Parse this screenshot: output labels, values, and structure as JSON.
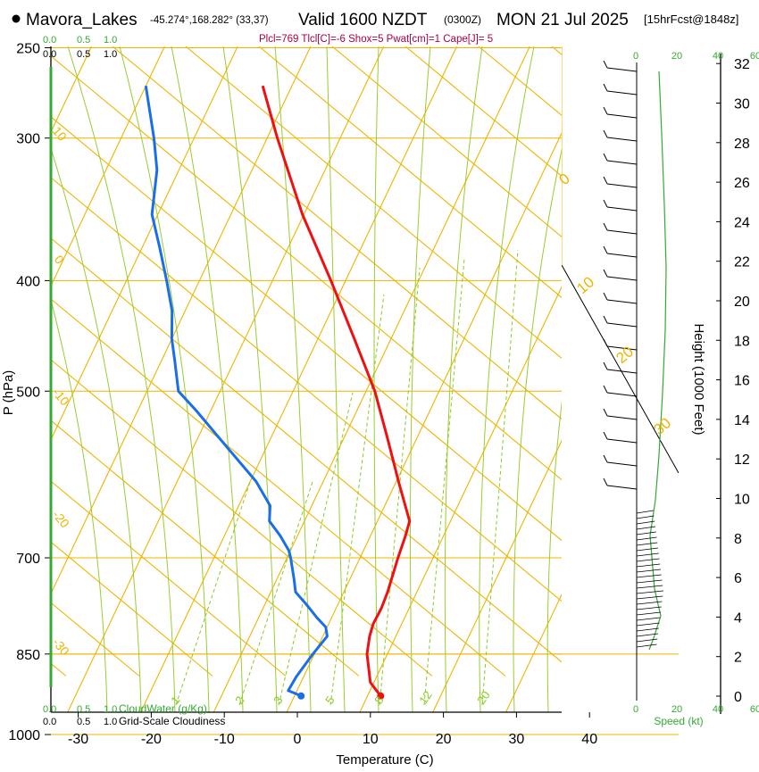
{
  "header": {
    "station": "Mavora_Lakes",
    "coords": "-45.274°,168.282° (33,37)",
    "valid": "Valid 1600 NZDT",
    "utc": "(0300Z)",
    "date": "MON 21 Jul 2025",
    "forecast": "[15hrFcst@1848z]",
    "indices": "Plcl=769 Tlcl[C]=-6 Shox=5 Pwat[cm]=1 Cape[J]= 5"
  },
  "colors": {
    "temperature": "#ee1111",
    "dewpoint": "#1a6fe8",
    "isotherm": "#f0b400",
    "dry_adiabat": "#99cc33",
    "mixing_ratio": "#88cc22",
    "cloud": "#33aa33",
    "speed": "#33aa33",
    "indices": "#aa0044"
  },
  "chart_data": {
    "type": "line",
    "title": "Mavora_Lakes Valid 1600 NZDT (0300Z) MON 21 Jul 2025",
    "xlabel": "Temperature (C)",
    "ylabel": "P (hPa)",
    "right_label": "Height (1000 Feet)",
    "pressure_ticks": [
      "250",
      "300",
      "400",
      "500",
      "700",
      "850",
      "1000"
    ],
    "pressure_values": [
      250,
      300,
      400,
      500,
      700,
      850,
      1000
    ],
    "temperature_ticks": [
      "-30",
      "-20",
      "-10",
      "0",
      "10",
      "20",
      "30",
      "40"
    ],
    "temperature_values": [
      -30,
      -20,
      -10,
      0,
      10,
      20,
      30,
      40
    ],
    "height_ticks": [
      "0",
      "2",
      "4",
      "6",
      "8",
      "10",
      "12",
      "14",
      "16",
      "18",
      "20",
      "22",
      "24",
      "26",
      "28",
      "30",
      "32"
    ],
    "height_values": [
      0,
      2,
      4,
      6,
      8,
      10,
      12,
      14,
      16,
      18,
      20,
      22,
      24,
      26,
      28,
      30,
      32
    ],
    "isotherm_labels": [
      "10",
      "0",
      "-10",
      "-20",
      "-30"
    ],
    "adiabat_labels": [
      "0",
      "10",
      "20",
      "30"
    ],
    "mixing_ratio_labels": [
      "1",
      "2",
      "3",
      "5",
      "8",
      "12",
      "20"
    ],
    "cloudwater_top_ticks": [
      "0.0",
      "0.5",
      "1.0"
    ],
    "cloudwater_bottom_ticks": [
      "0.0",
      "0.5",
      "1.0"
    ],
    "cloudwater_label": "CloudWater (g/Kg)",
    "cloudiness_label": "Grid-Scale Cloudiness",
    "speed_ticks_top": [
      "0",
      "20",
      "40",
      "60"
    ],
    "speed_ticks_bottom": [
      "0",
      "20",
      "40",
      "60"
    ],
    "speed_label": "Speed (kt)",
    "series": [
      {
        "name": "Temperature",
        "values": [
          [
            925,
            11.8
          ],
          [
            900,
            9.5
          ],
          [
            880,
            8.6
          ],
          [
            850,
            7.2
          ],
          [
            820,
            6.4
          ],
          [
            800,
            6.1
          ],
          [
            775,
            6.2
          ],
          [
            750,
            6.0
          ],
          [
            700,
            5.2
          ],
          [
            670,
            4.8
          ],
          [
            650,
            4.4
          ],
          [
            600,
            0.3
          ],
          [
            550,
            -4.0
          ],
          [
            500,
            -8.8
          ],
          [
            450,
            -15.0
          ],
          [
            400,
            -22.0
          ],
          [
            350,
            -30.2
          ],
          [
            300,
            -38.6
          ],
          [
            270,
            -44.0
          ]
        ]
      },
      {
        "name": "Dewpoint",
        "values": [
          [
            925,
            0.9
          ],
          [
            915,
            -1.2
          ],
          [
            890,
            -1.0
          ],
          [
            850,
            -0.2
          ],
          [
            820,
            0.6
          ],
          [
            805,
            -0.2
          ],
          [
            790,
            -2.0
          ],
          [
            770,
            -4.2
          ],
          [
            750,
            -6.6
          ],
          [
            730,
            -7.7
          ],
          [
            700,
            -9.5
          ],
          [
            690,
            -10.2
          ],
          [
            670,
            -12.3
          ],
          [
            650,
            -14.8
          ],
          [
            630,
            -15.7
          ],
          [
            600,
            -19.2
          ],
          [
            550,
            -27.0
          ],
          [
            520,
            -32.0
          ],
          [
            500,
            -35.7
          ],
          [
            470,
            -38.2
          ],
          [
            450,
            -40.0
          ],
          [
            425,
            -41.8
          ],
          [
            400,
            -44.5
          ],
          [
            375,
            -47.5
          ],
          [
            350,
            -50.8
          ],
          [
            320,
            -53.0
          ],
          [
            300,
            -55.5
          ],
          [
            270,
            -60.0
          ]
        ]
      }
    ]
  }
}
